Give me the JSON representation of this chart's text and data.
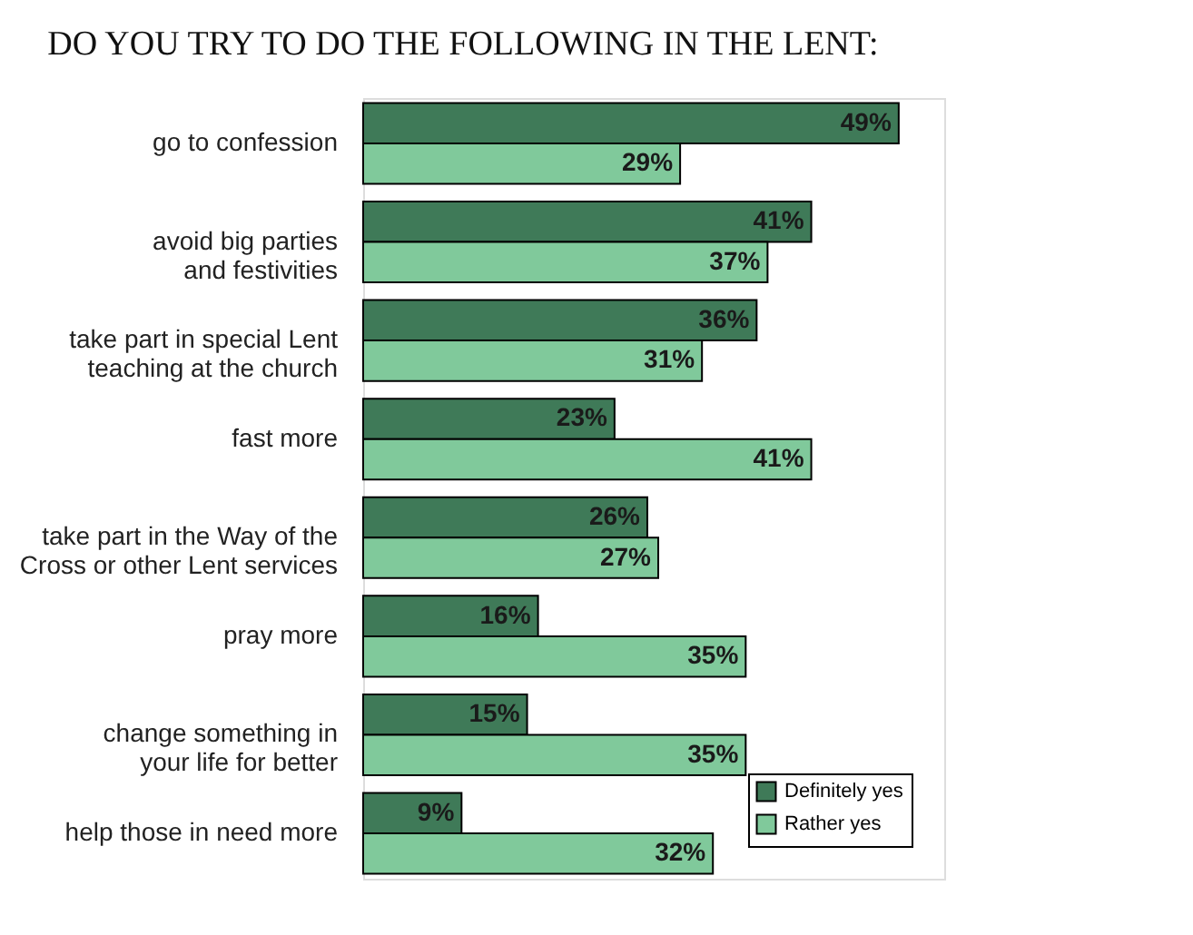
{
  "chart_data": {
    "type": "bar",
    "orientation": "horizontal",
    "title": "DO YOU TRY TO DO THE FOLLOWING IN THE LENT:",
    "categories": [
      "go to confession",
      "avoid big parties and festivities",
      "take part in special Lent teaching at the church",
      "fast more",
      "take part in the Way of the Cross or other Lent services",
      "pray more",
      "change something in your life for better",
      "help those in need more"
    ],
    "series": [
      {
        "name": "Definitely yes",
        "color": "#3f7a58",
        "values": [
          49,
          41,
          36,
          23,
          26,
          16,
          15,
          9
        ],
        "value_labels": [
          "49%",
          "41%",
          "36%",
          "23%",
          "26%",
          "16%",
          "15%",
          "9%"
        ]
      },
      {
        "name": "Rather yes",
        "color": "#80c99b",
        "values": [
          29,
          37,
          31,
          41,
          27,
          35,
          35,
          32
        ],
        "value_labels": [
          "29%",
          "37%",
          "31%",
          "41%",
          "27%",
          "35%",
          "35%",
          "32%"
        ]
      }
    ],
    "legend": "bottom right",
    "grid": false
  }
}
